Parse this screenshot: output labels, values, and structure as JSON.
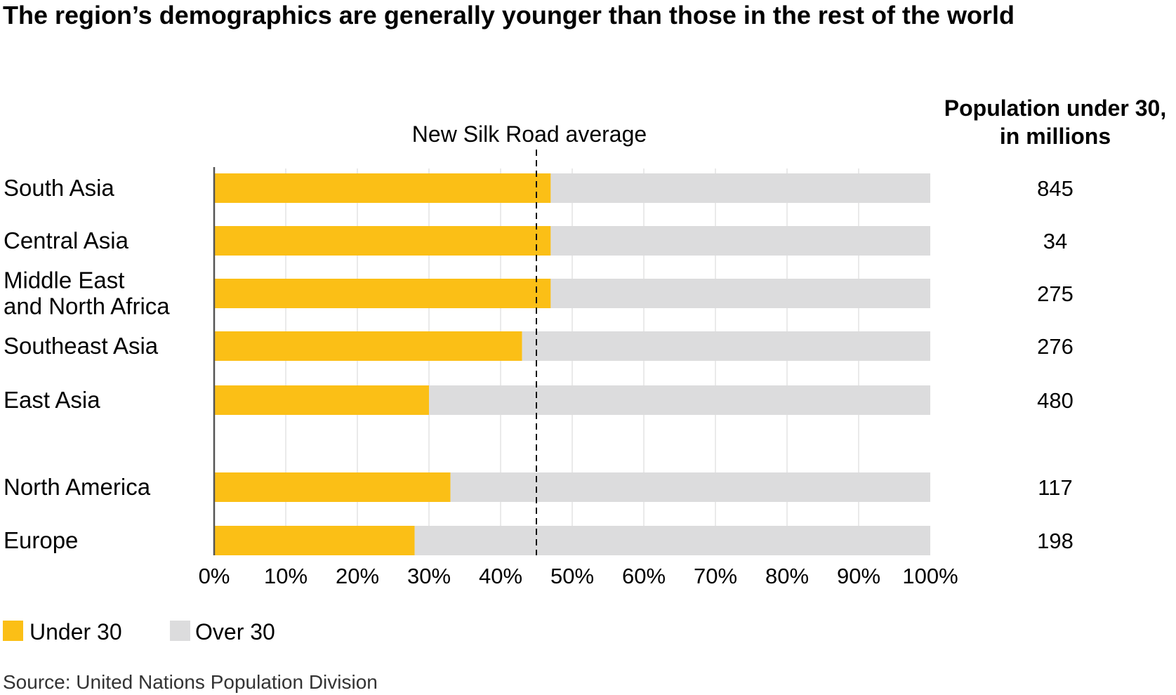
{
  "title": "The region’s demographics are generally younger than those in the rest of the world",
  "value_column_header": [
    "Population under 30,",
    "in millions"
  ],
  "reference_line_label": "New Silk Road average",
  "source": "Source: United Nations Population Division",
  "legend": [
    {
      "label": "Under 30",
      "color": "#FBBF16"
    },
    {
      "label": "Over 30",
      "color": "#DCDCDD"
    }
  ],
  "chart_data": {
    "type": "bar",
    "orientation": "horizontal",
    "stacked": true,
    "percent": true,
    "categories": [
      [
        "South Asia"
      ],
      [
        "Central Asia"
      ],
      [
        "Middle East",
        "and North Africa"
      ],
      [
        "Southeast Asia"
      ],
      [
        "East Asia"
      ],
      [
        "North America"
      ],
      [
        "Europe"
      ]
    ],
    "series": [
      {
        "name": "Under 30",
        "color": "#FBBF16",
        "values": [
          47,
          47,
          47,
          43,
          30,
          33,
          28
        ]
      },
      {
        "name": "Over 30",
        "color": "#DCDCDD",
        "values": [
          53,
          53,
          53,
          57,
          70,
          67,
          72
        ]
      }
    ],
    "population_under_30_millions": [
      "845",
      "34",
      "275",
      "276",
      "480",
      "117",
      "198"
    ],
    "reference_line": {
      "label": "New Silk Road average",
      "value": 45
    },
    "xlim": [
      0,
      100
    ],
    "xticks": [
      "0%",
      "10%",
      "20%",
      "30%",
      "40%",
      "50%",
      "60%",
      "70%",
      "80%",
      "90%",
      "100%"
    ],
    "grid": "vertical",
    "legend_position": "bottom-left"
  }
}
